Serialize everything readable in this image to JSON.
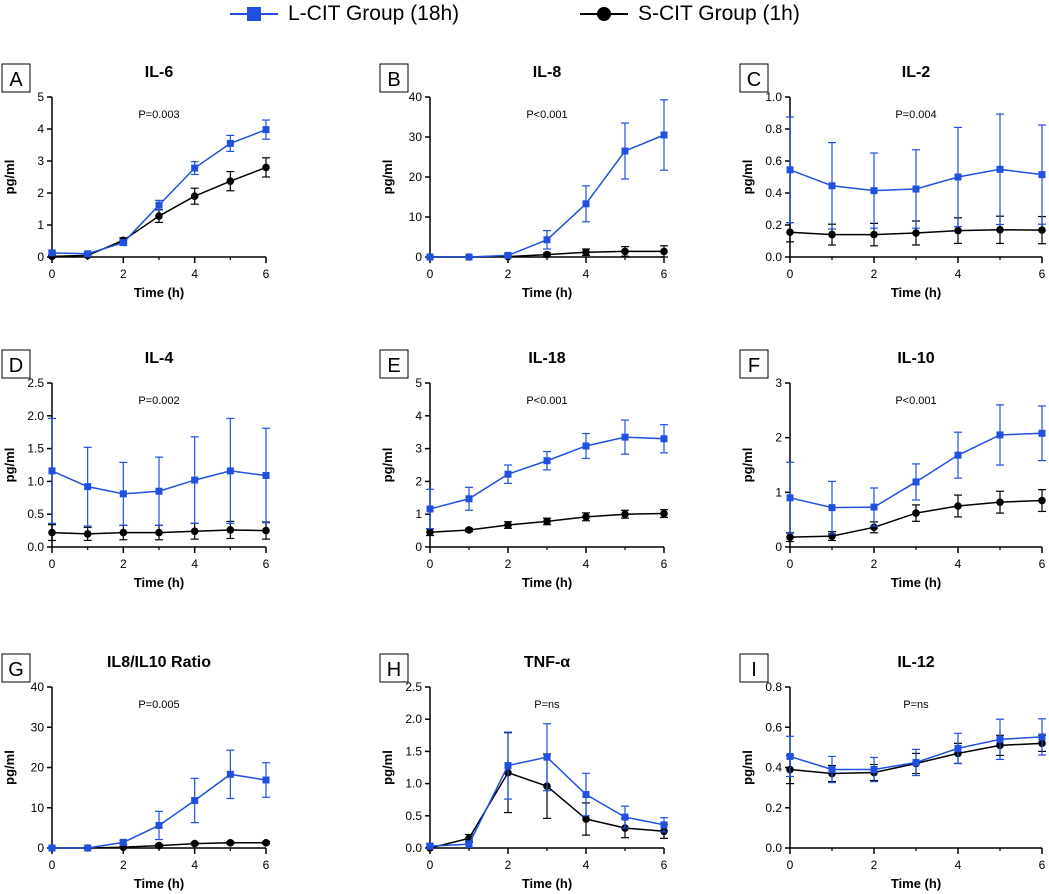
{
  "legend": {
    "l_cit_label": "L-CIT Group (18h)",
    "s_cit_label": "S-CIT Group (1h)"
  },
  "colors": {
    "l_cit": "#2050e0",
    "s_cit": "#000000",
    "axis": "#000000"
  },
  "chart_data": [
    {
      "type": "line",
      "panel": "A",
      "title": "IL-6",
      "pvalue": "P=0.003",
      "xlabel": "Time (h)",
      "ylabel": "pg/ml",
      "x": [
        0,
        1,
        2,
        3,
        4,
        5,
        6
      ],
      "xlim": [
        0,
        6
      ],
      "xticks": [
        "0",
        "2",
        "4",
        "6"
      ],
      "ylim": [
        0,
        5
      ],
      "yticks": [
        "0",
        "1",
        "2",
        "3",
        "4",
        "5"
      ],
      "series": [
        {
          "name": "L-CIT Group (18h)",
          "marker": "square",
          "values": [
            0.13,
            0.1,
            0.45,
            1.62,
            2.78,
            3.55,
            3.98
          ],
          "errors": [
            0.05,
            0.05,
            0.08,
            0.15,
            0.2,
            0.25,
            0.3
          ]
        },
        {
          "name": "S-CIT Group (1h)",
          "marker": "circle",
          "values": [
            0.02,
            0.05,
            0.52,
            1.28,
            1.9,
            2.37,
            2.8
          ],
          "errors": [
            0.03,
            0.04,
            0.08,
            0.2,
            0.25,
            0.3,
            0.3
          ]
        }
      ]
    },
    {
      "type": "line",
      "panel": "B",
      "title": "IL-8",
      "pvalue": "P<0.001",
      "xlabel": "Time (h)",
      "ylabel": "pg/ml",
      "x": [
        0,
        1,
        2,
        3,
        4,
        5,
        6
      ],
      "xlim": [
        0,
        6
      ],
      "xticks": [
        "0",
        "2",
        "4",
        "6"
      ],
      "ylim": [
        0,
        40
      ],
      "yticks": [
        "0",
        "10",
        "20",
        "30",
        "40"
      ],
      "series": [
        {
          "name": "L-CIT Group (18h)",
          "marker": "square",
          "values": [
            0.0,
            0.0,
            0.4,
            4.3,
            13.3,
            26.5,
            30.5
          ],
          "errors": [
            0.2,
            0.2,
            0.4,
            2.3,
            4.5,
            7.0,
            8.8
          ]
        },
        {
          "name": "S-CIT Group (1h)",
          "marker": "circle",
          "values": [
            0.0,
            0.0,
            0.1,
            0.6,
            1.2,
            1.4,
            1.4
          ],
          "errors": [
            0.1,
            0.1,
            0.1,
            0.4,
            0.8,
            1.2,
            1.4
          ]
        }
      ]
    },
    {
      "type": "line",
      "panel": "C",
      "title": "IL-2",
      "pvalue": "P=0.004",
      "xlabel": "Time (h)",
      "ylabel": "pg/ml",
      "x": [
        0,
        1,
        2,
        3,
        4,
        5,
        6
      ],
      "xlim": [
        0,
        6
      ],
      "xticks": [
        "0",
        "2",
        "4",
        "6"
      ],
      "ylim": [
        0,
        1.0
      ],
      "yticks": [
        "0.0",
        "0.2",
        "0.4",
        "0.6",
        "0.8",
        "1.0"
      ],
      "series": [
        {
          "name": "L-CIT Group (18h)",
          "marker": "square",
          "values": [
            0.545,
            0.445,
            0.415,
            0.425,
            0.5,
            0.548,
            0.515
          ],
          "errors": [
            0.33,
            0.27,
            0.235,
            0.245,
            0.31,
            0.345,
            0.31
          ]
        },
        {
          "name": "S-CIT Group (1h)",
          "marker": "circle",
          "values": [
            0.155,
            0.14,
            0.14,
            0.15,
            0.165,
            0.17,
            0.168
          ],
          "errors": [
            0.06,
            0.065,
            0.07,
            0.075,
            0.08,
            0.085,
            0.085
          ]
        }
      ]
    },
    {
      "type": "line",
      "panel": "D",
      "title": "IL-4",
      "pvalue": "P=0.002",
      "xlabel": "Time (h)",
      "ylabel": "pg/ml",
      "x": [
        0,
        1,
        2,
        3,
        4,
        5,
        6
      ],
      "xlim": [
        0,
        6
      ],
      "xticks": [
        "0",
        "2",
        "4",
        "6"
      ],
      "ylim": [
        0,
        2.5
      ],
      "yticks": [
        "0.0",
        "0.5",
        "1.0",
        "1.5",
        "2.0",
        "2.5"
      ],
      "series": [
        {
          "name": "L-CIT Group (18h)",
          "marker": "square",
          "values": [
            1.16,
            0.92,
            0.81,
            0.85,
            1.02,
            1.16,
            1.09
          ],
          "errors": [
            0.8,
            0.6,
            0.48,
            0.52,
            0.66,
            0.8,
            0.72
          ]
        },
        {
          "name": "S-CIT Group (1h)",
          "marker": "circle",
          "values": [
            0.22,
            0.2,
            0.22,
            0.22,
            0.24,
            0.26,
            0.25
          ],
          "errors": [
            0.12,
            0.1,
            0.11,
            0.11,
            0.12,
            0.13,
            0.13
          ]
        }
      ]
    },
    {
      "type": "line",
      "panel": "E",
      "title": "IL-18",
      "pvalue": "P<0.001",
      "xlabel": "Time (h)",
      "ylabel": "pg/ml",
      "x": [
        0,
        1,
        2,
        3,
        4,
        5,
        6
      ],
      "xlim": [
        0,
        6
      ],
      "xticks": [
        "0",
        "2",
        "4",
        "6"
      ],
      "ylim": [
        0,
        5
      ],
      "yticks": [
        "0",
        "1",
        "2",
        "3",
        "4",
        "5"
      ],
      "series": [
        {
          "name": "L-CIT Group (18h)",
          "marker": "square",
          "values": [
            1.16,
            1.47,
            2.22,
            2.63,
            3.08,
            3.35,
            3.3
          ],
          "errors": [
            0.6,
            0.35,
            0.28,
            0.28,
            0.38,
            0.52,
            0.43
          ]
        },
        {
          "name": "S-CIT Group (1h)",
          "marker": "circle",
          "values": [
            0.45,
            0.52,
            0.67,
            0.78,
            0.92,
            1.0,
            1.02
          ],
          "errors": [
            0.1,
            0.05,
            0.1,
            0.1,
            0.12,
            0.12,
            0.12
          ]
        }
      ]
    },
    {
      "type": "line",
      "panel": "F",
      "title": "IL-10",
      "pvalue": "P<0.001",
      "xlabel": "Time (h)",
      "ylabel": "pg/ml",
      "x": [
        0,
        1,
        2,
        3,
        4,
        5,
        6
      ],
      "xlim": [
        0,
        6
      ],
      "xticks": [
        "0",
        "2",
        "4",
        "6"
      ],
      "ylim": [
        0,
        3
      ],
      "yticks": [
        "0",
        "1",
        "2",
        "3"
      ],
      "series": [
        {
          "name": "L-CIT Group (18h)",
          "marker": "square",
          "values": [
            0.9,
            0.72,
            0.73,
            1.19,
            1.68,
            2.05,
            2.08
          ],
          "errors": [
            0.65,
            0.48,
            0.35,
            0.33,
            0.42,
            0.55,
            0.5
          ]
        },
        {
          "name": "S-CIT Group (1h)",
          "marker": "circle",
          "values": [
            0.18,
            0.2,
            0.36,
            0.62,
            0.75,
            0.82,
            0.85
          ],
          "errors": [
            0.08,
            0.08,
            0.1,
            0.15,
            0.2,
            0.2,
            0.2
          ]
        }
      ]
    },
    {
      "type": "line",
      "panel": "G",
      "title": "IL8/IL10 Ratio",
      "pvalue": "P=0.005",
      "xlabel": "Time (h)",
      "ylabel": "pg/ml",
      "x": [
        0,
        1,
        2,
        3,
        4,
        5,
        6
      ],
      "xlim": [
        0,
        6
      ],
      "xticks": [
        "0",
        "2",
        "4",
        "6"
      ],
      "ylim": [
        0,
        40
      ],
      "yticks": [
        "0",
        "10",
        "20",
        "30",
        "40"
      ],
      "series": [
        {
          "name": "L-CIT Group (18h)",
          "marker": "square",
          "values": [
            0.0,
            0.0,
            1.4,
            5.6,
            11.8,
            18.3,
            16.9
          ],
          "errors": [
            0.2,
            0.2,
            0.5,
            3.5,
            5.5,
            6.0,
            4.3
          ]
        },
        {
          "name": "S-CIT Group (1h)",
          "marker": "circle",
          "values": [
            0.0,
            0.0,
            0.2,
            0.6,
            1.1,
            1.3,
            1.3
          ],
          "errors": [
            0.1,
            0.1,
            0.1,
            0.3,
            0.3,
            0.3,
            0.3
          ]
        }
      ]
    },
    {
      "type": "line",
      "panel": "H",
      "title": "TNF-α",
      "pvalue": "P=ns",
      "xlabel": "Time (h)",
      "ylabel": "pg/ml",
      "x": [
        0,
        1,
        2,
        3,
        4,
        5,
        6
      ],
      "xlim": [
        0,
        6
      ],
      "xticks": [
        "0",
        "2",
        "4",
        "6"
      ],
      "ylim": [
        0,
        2.5
      ],
      "yticks": [
        "0.0",
        "0.5",
        "1.0",
        "1.5",
        "2.0",
        "2.5"
      ],
      "series": [
        {
          "name": "L-CIT Group (18h)",
          "marker": "square",
          "values": [
            0.03,
            0.06,
            1.28,
            1.41,
            0.83,
            0.48,
            0.36
          ],
          "errors": [
            0.03,
            0.05,
            0.52,
            0.52,
            0.33,
            0.17,
            0.11
          ]
        },
        {
          "name": "S-CIT Group (1h)",
          "marker": "circle",
          "values": [
            0.0,
            0.15,
            1.17,
            0.96,
            0.45,
            0.31,
            0.26
          ],
          "errors": [
            0.02,
            0.06,
            0.62,
            0.5,
            0.25,
            0.15,
            0.11
          ]
        }
      ]
    },
    {
      "type": "line",
      "panel": "I",
      "title": "IL-12",
      "pvalue": "P=ns",
      "xlabel": "Time (h)",
      "ylabel": "pg/ml",
      "x": [
        0,
        1,
        2,
        3,
        4,
        5,
        6
      ],
      "xlim": [
        0,
        6
      ],
      "xticks": [
        "0",
        "2",
        "4",
        "6"
      ],
      "ylim": [
        0,
        0.8
      ],
      "yticks": [
        "0.0",
        "0.2",
        "0.4",
        "0.6",
        "0.8"
      ],
      "series": [
        {
          "name": "L-CIT Group (18h)",
          "marker": "square",
          "values": [
            0.455,
            0.39,
            0.39,
            0.425,
            0.495,
            0.54,
            0.552
          ],
          "errors": [
            0.1,
            0.065,
            0.06,
            0.065,
            0.075,
            0.1,
            0.09
          ]
        },
        {
          "name": "S-CIT Group (1h)",
          "marker": "circle",
          "values": [
            0.39,
            0.37,
            0.375,
            0.42,
            0.47,
            0.51,
            0.52
          ],
          "errors": [
            0.07,
            0.04,
            0.04,
            0.05,
            0.05,
            0.05,
            0.04
          ]
        }
      ]
    }
  ]
}
